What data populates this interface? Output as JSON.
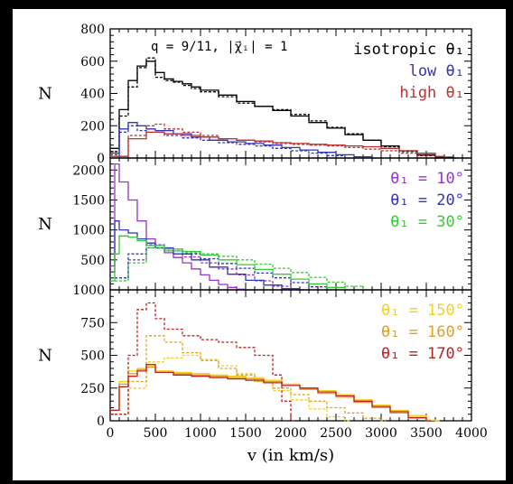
{
  "chart_data": {
    "type": "line",
    "xlabel": "v (in km/s)",
    "xlim": [
      0,
      4000
    ],
    "x_ticks": [
      "0",
      "500",
      "1000",
      "1500",
      "2000",
      "2500",
      "3000",
      "3500",
      "4000"
    ],
    "step_kms": 50,
    "panels": [
      {
        "id": "top",
        "ylabel": "N",
        "ylim": [
          0,
          800
        ],
        "y_ticks": [
          "0",
          "200",
          "400",
          "600",
          "800"
        ],
        "annotation": "q = 9/11, |χ⃗ᵢ| = 1",
        "legend": [
          {
            "text": "isotropic θ₁",
            "color": "#000000"
          },
          {
            "text": "low θ₁",
            "color": "#3333bb"
          },
          {
            "text": "high θ₁",
            "color": "#bb3333"
          }
        ],
        "series": [
          {
            "name": "isotropic θ₁",
            "color": "#000000",
            "dashed": false,
            "x": [
              0,
              100,
              200,
              300,
              400,
              500,
              600,
              700,
              800,
              900,
              1000,
              1200,
              1400,
              1600,
              1800,
              2000,
              2200,
              2400,
              2600,
              2800,
              3000,
              3200,
              3400,
              3600,
              3800
            ],
            "y": [
              60,
              300,
              480,
              570,
              600,
              530,
              490,
              475,
              460,
              440,
              420,
              390,
              350,
              320,
              295,
              260,
              220,
              185,
              145,
              110,
              75,
              45,
              20,
              5,
              0
            ]
          },
          {
            "name": "isotropic θ₁",
            "color": "#000000",
            "dashed": true,
            "x": [
              0,
              100,
              200,
              300,
              400,
              500,
              600,
              700,
              800,
              900,
              1000,
              1200,
              1400,
              1600,
              1800,
              2000,
              2200,
              2400,
              2600,
              2800,
              3000,
              3200,
              3400,
              3600
            ],
            "y": [
              40,
              260,
              440,
              560,
              620,
              500,
              480,
              470,
              450,
              430,
              410,
              380,
              340,
              320,
              300,
              270,
              230,
              190,
              150,
              110,
              70,
              40,
              15,
              0
            ]
          },
          {
            "name": "low θ₁",
            "color": "#3333bb",
            "dashed": false,
            "x": [
              0,
              100,
              200,
              300,
              400,
              500,
              700,
              900,
              1100,
              1300,
              1500,
              1700,
              1900,
              2100,
              2300,
              2500,
              2700,
              2900
            ],
            "y": [
              30,
              180,
              220,
              200,
              180,
              170,
              150,
              130,
              110,
              100,
              90,
              80,
              65,
              50,
              35,
              20,
              8,
              0
            ]
          },
          {
            "name": "low θ₁",
            "color": "#3333bb",
            "dashed": true,
            "x": [
              0,
              100,
              200,
              300,
              400,
              600,
              800,
              1000,
              1200,
              1400,
              1600,
              1800,
              2000,
              2200,
              2400,
              2600
            ],
            "y": [
              20,
              160,
              200,
              170,
              160,
              140,
              125,
              110,
              95,
              85,
              75,
              60,
              45,
              30,
              15,
              0
            ]
          },
          {
            "name": "high θ₁",
            "color": "#bb3333",
            "dashed": false,
            "x": [
              0,
              200,
              400,
              600,
              800,
              1000,
              1200,
              1400,
              1600,
              1800,
              2000,
              2200,
              2400,
              2600,
              2800,
              3000,
              3200,
              3400,
              3600,
              3700
            ],
            "y": [
              10,
              120,
              160,
              150,
              140,
              130,
              120,
              110,
              105,
              95,
              90,
              85,
              80,
              75,
              70,
              60,
              45,
              30,
              10,
              0
            ]
          },
          {
            "name": "high θ₁",
            "color": "#bb3333",
            "dashed": true,
            "x": [
              0,
              200,
              400,
              500,
              600,
              800,
              1000,
              1200,
              1400,
              1600,
              1800,
              2000,
              2200,
              2400,
              2600,
              2800,
              3000,
              3200,
              3400,
              3600
            ],
            "y": [
              10,
              140,
              200,
              210,
              180,
              160,
              140,
              120,
              110,
              100,
              90,
              85,
              80,
              75,
              65,
              55,
              45,
              30,
              15,
              0
            ]
          }
        ]
      },
      {
        "id": "middle",
        "ylabel": "N",
        "ylim": [
          0,
          2200
        ],
        "y_ticks": [
          "500",
          "1000",
          "1500",
          "2000"
        ],
        "legend": [
          {
            "text": "θ₁ = 10°",
            "color": "#9933cc"
          },
          {
            "text": "θ₁ = 20°",
            "color": "#3333bb"
          },
          {
            "text": "θ₁ = 30°",
            "color": "#33cc33"
          }
        ],
        "series": [
          {
            "name": "θ₁ = 10°",
            "color": "#9933cc",
            "dashed": false,
            "x": [
              0,
              50,
              100,
              200,
              300,
              400,
              500,
              600,
              700,
              800,
              900,
              1000,
              1100,
              1200,
              1300,
              1400,
              1500
            ],
            "y": [
              400,
              2100,
              1800,
              1500,
              1150,
              850,
              700,
              620,
              540,
              450,
              350,
              250,
              160,
              90,
              40,
              10,
              0
            ]
          },
          {
            "name": "θ₁ = 10°",
            "color": "#9933cc",
            "dashed": true,
            "x": [
              0,
              200,
              400,
              600,
              800,
              1000,
              1200,
              1400,
              1600,
              1800,
              2000
            ],
            "y": [
              200,
              500,
              700,
              650,
              550,
              450,
              350,
              250,
              150,
              60,
              0
            ]
          },
          {
            "name": "θ₁ = 20°",
            "color": "#3333bb",
            "dashed": false,
            "x": [
              0,
              50,
              100,
              200,
              300,
              400,
              500,
              700,
              900,
              1100,
              1300,
              1500,
              1700,
              1900,
              2100
            ],
            "y": [
              300,
              1150,
              1000,
              950,
              850,
              780,
              700,
              600,
              500,
              380,
              260,
              160,
              80,
              20,
              0
            ]
          },
          {
            "name": "θ₁ = 20°",
            "color": "#3333bb",
            "dashed": true,
            "x": [
              0,
              200,
              400,
              600,
              800,
              1000,
              1200,
              1400,
              1600,
              1800,
              2000,
              2200,
              2400
            ],
            "y": [
              200,
              600,
              750,
              680,
              600,
              520,
              440,
              360,
              280,
              200,
              120,
              50,
              0
            ]
          },
          {
            "name": "θ₁ = 30°",
            "color": "#33cc33",
            "dashed": false,
            "x": [
              0,
              50,
              100,
              200,
              300,
              400,
              600,
              800,
              1000,
              1200,
              1400,
              1600,
              1800,
              2000,
              2200,
              2400,
              2600
            ],
            "y": [
              150,
              600,
              900,
              880,
              820,
              740,
              680,
              640,
              580,
              500,
              420,
              340,
              260,
              180,
              100,
              40,
              0
            ]
          },
          {
            "name": "θ₁ = 30°",
            "color": "#33cc33",
            "dashed": true,
            "x": [
              0,
              200,
              400,
              600,
              800,
              1000,
              1200,
              1400,
              1600,
              1800,
              2000,
              2200,
              2400,
              2600,
              2800
            ],
            "y": [
              150,
              450,
              700,
              650,
              620,
              600,
              560,
              500,
              430,
              360,
              290,
              210,
              130,
              60,
              0
            ]
          }
        ]
      },
      {
        "id": "bottom",
        "ylabel": "N",
        "ylim": [
          0,
          1000
        ],
        "y_ticks": [
          "0",
          "250",
          "500",
          "750",
          "1000"
        ],
        "legend": [
          {
            "text": "θ₁ = 150°",
            "color": "#f2d11a"
          },
          {
            "text": "θ₁ = 160°",
            "color": "#e0a020"
          },
          {
            "text": "θ₁ = 170°",
            "color": "#bb2222"
          }
        ],
        "series": [
          {
            "name": "θ₁ = 150°",
            "color": "#f2d11a",
            "dashed": false,
            "x": [
              0,
              100,
              200,
              300,
              400,
              500,
              700,
              900,
              1100,
              1300,
              1500,
              1700,
              1900,
              2100,
              2300,
              2500,
              2700,
              2900,
              3100,
              3300,
              3500,
              3600
            ],
            "y": [
              80,
              300,
              380,
              400,
              420,
              380,
              370,
              360,
              350,
              340,
              330,
              310,
              280,
              250,
              230,
              200,
              160,
              120,
              80,
              40,
              5,
              0
            ]
          },
          {
            "name": "θ₁ = 150°",
            "color": "#f2d11a",
            "dashed": true,
            "x": [
              0,
              200,
              400,
              600,
              800,
              1000,
              1200,
              1400,
              1600,
              1800,
              2000,
              2200,
              2400,
              2600
            ],
            "y": [
              50,
              250,
              450,
              480,
              500,
              470,
              420,
              360,
              300,
              230,
              160,
              90,
              30,
              0
            ]
          },
          {
            "name": "θ₁ = 160°",
            "color": "#e0a020",
            "dashed": false,
            "x": [
              0,
              100,
              200,
              300,
              400,
              500,
              700,
              900,
              1100,
              1300,
              1500,
              1700,
              1900,
              2100,
              2300,
              2500,
              2700,
              2900,
              3100,
              3300,
              3500
            ],
            "y": [
              80,
              280,
              360,
              390,
              410,
              370,
              360,
              350,
              340,
              330,
              320,
              300,
              270,
              240,
              210,
              180,
              140,
              100,
              60,
              20,
              0
            ]
          },
          {
            "name": "θ₁ = 160°",
            "color": "#e0a020",
            "dashed": true,
            "x": [
              0,
              200,
              400,
              600,
              800,
              1000,
              1200,
              1400,
              1600,
              1800,
              2000,
              2200,
              2400,
              2600,
              2800,
              3000
            ],
            "y": [
              50,
              300,
              650,
              600,
              520,
              460,
              400,
              350,
              300,
              250,
              200,
              150,
              100,
              60,
              20,
              0
            ]
          },
          {
            "name": "θ₁ = 170°",
            "color": "#bb2222",
            "dashed": false,
            "x": [
              0,
              100,
              200,
              300,
              400,
              500,
              700,
              900,
              1100,
              1300,
              1500,
              1700,
              1900,
              2100,
              2300,
              2500,
              2700,
              2900,
              3100,
              3300,
              3500
            ],
            "y": [
              80,
              260,
              340,
              380,
              430,
              370,
              350,
              340,
              330,
              320,
              310,
              290,
              270,
              250,
              220,
              190,
              150,
              110,
              70,
              25,
              0
            ]
          },
          {
            "name": "θ₁ = 170°",
            "color": "#bb2222",
            "dashed": true,
            "x": [
              0,
              200,
              300,
              400,
              500,
              600,
              800,
              1000,
              1200,
              1400,
              1600,
              1800,
              1900,
              2000
            ],
            "y": [
              50,
              500,
              850,
              900,
              780,
              700,
              650,
              620,
              600,
              560,
              500,
              350,
              150,
              0
            ]
          }
        ]
      }
    ]
  }
}
